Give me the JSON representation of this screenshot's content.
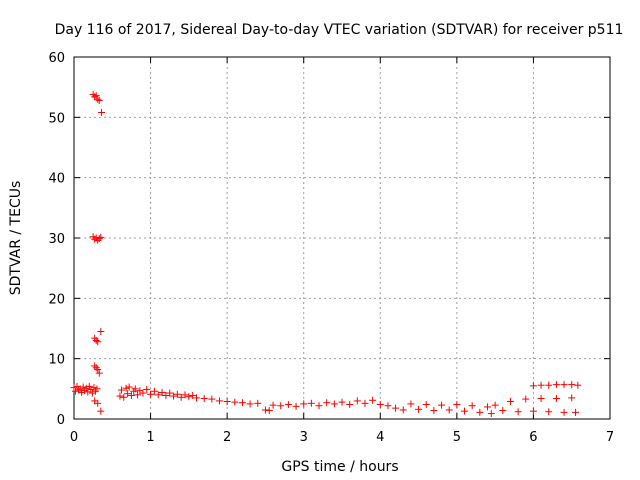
{
  "chart_data": {
    "type": "scatter",
    "title": "Day 116 of 2017, Sidereal Day-to-day VTEC variation (SDTVAR) for receiver p511",
    "xlabel": "GPS time / hours",
    "ylabel": "SDTVAR / TECUs",
    "xlim": [
      0,
      7
    ],
    "ylim": [
      0,
      60
    ],
    "xticks": [
      0,
      1,
      2,
      3,
      4,
      5,
      6,
      7
    ],
    "yticks": [
      0,
      10,
      20,
      30,
      40,
      50,
      60
    ],
    "grid": true,
    "marker": "+",
    "color": "#ff0000",
    "series": [
      {
        "name": "SDTVAR",
        "points": [
          [
            0.0,
            5.2
          ],
          [
            0.02,
            4.6
          ],
          [
            0.04,
            5.4
          ],
          [
            0.06,
            4.8
          ],
          [
            0.08,
            5.0
          ],
          [
            0.1,
            4.4
          ],
          [
            0.12,
            5.3
          ],
          [
            0.14,
            4.7
          ],
          [
            0.16,
            5.1
          ],
          [
            0.18,
            4.5
          ],
          [
            0.2,
            5.4
          ],
          [
            0.22,
            4.9
          ],
          [
            0.24,
            4.3
          ],
          [
            0.26,
            5.2
          ],
          [
            0.28,
            4.6
          ],
          [
            0.3,
            5.0
          ],
          [
            0.25,
            53.8
          ],
          [
            0.27,
            53.4
          ],
          [
            0.29,
            53.6
          ],
          [
            0.31,
            53.0
          ],
          [
            0.33,
            52.8
          ],
          [
            0.36,
            50.8
          ],
          [
            0.25,
            30.2
          ],
          [
            0.27,
            29.8
          ],
          [
            0.29,
            30.0
          ],
          [
            0.31,
            29.6
          ],
          [
            0.33,
            29.9
          ],
          [
            0.35,
            30.1
          ],
          [
            0.27,
            13.4
          ],
          [
            0.29,
            13.0
          ],
          [
            0.31,
            12.8
          ],
          [
            0.35,
            14.5
          ],
          [
            0.27,
            8.8
          ],
          [
            0.29,
            8.5
          ],
          [
            0.31,
            8.2
          ],
          [
            0.33,
            7.6
          ],
          [
            0.27,
            3.0
          ],
          [
            0.31,
            2.6
          ],
          [
            0.35,
            1.3
          ],
          [
            0.6,
            3.8
          ],
          [
            0.62,
            4.8
          ],
          [
            0.65,
            3.6
          ],
          [
            0.68,
            5.1
          ],
          [
            0.7,
            4.2
          ],
          [
            0.72,
            5.3
          ],
          [
            0.75,
            3.9
          ],
          [
            0.78,
            4.6
          ],
          [
            0.8,
            5.0
          ],
          [
            0.83,
            4.0
          ],
          [
            0.86,
            4.7
          ],
          [
            0.9,
            4.3
          ],
          [
            0.95,
            4.9
          ],
          [
            1.0,
            4.1
          ],
          [
            1.05,
            4.6
          ],
          [
            1.1,
            4.0
          ],
          [
            1.15,
            4.4
          ],
          [
            1.2,
            3.9
          ],
          [
            1.25,
            4.3
          ],
          [
            1.3,
            3.8
          ],
          [
            1.35,
            4.1
          ],
          [
            1.4,
            3.6
          ],
          [
            1.45,
            4.0
          ],
          [
            1.5,
            3.7
          ],
          [
            1.55,
            3.9
          ],
          [
            1.6,
            3.5
          ],
          [
            1.7,
            3.4
          ],
          [
            1.8,
            3.3
          ],
          [
            1.9,
            3.0
          ],
          [
            2.0,
            2.9
          ],
          [
            2.1,
            2.8
          ],
          [
            2.2,
            2.7
          ],
          [
            2.3,
            2.5
          ],
          [
            2.4,
            2.6
          ],
          [
            2.5,
            1.5
          ],
          [
            2.55,
            1.4
          ],
          [
            2.6,
            2.3
          ],
          [
            2.7,
            2.2
          ],
          [
            2.8,
            2.4
          ],
          [
            2.9,
            2.1
          ],
          [
            3.0,
            2.5
          ],
          [
            3.1,
            2.6
          ],
          [
            3.2,
            2.2
          ],
          [
            3.3,
            2.7
          ],
          [
            3.4,
            2.5
          ],
          [
            3.5,
            2.8
          ],
          [
            3.6,
            2.4
          ],
          [
            3.7,
            3.0
          ],
          [
            3.8,
            2.6
          ],
          [
            3.9,
            3.1
          ],
          [
            4.0,
            2.4
          ],
          [
            4.1,
            2.2
          ],
          [
            4.2,
            1.8
          ],
          [
            4.3,
            1.5
          ],
          [
            4.4,
            2.5
          ],
          [
            4.5,
            1.6
          ],
          [
            4.6,
            2.4
          ],
          [
            4.7,
            1.4
          ],
          [
            4.8,
            2.3
          ],
          [
            4.9,
            1.5
          ],
          [
            5.0,
            2.4
          ],
          [
            5.1,
            1.3
          ],
          [
            5.2,
            2.2
          ],
          [
            5.3,
            1.1
          ],
          [
            5.4,
            2.0
          ],
          [
            5.45,
            0.9
          ],
          [
            5.5,
            2.3
          ],
          [
            5.6,
            1.4
          ],
          [
            5.7,
            2.9
          ],
          [
            5.8,
            1.2
          ],
          [
            5.9,
            3.3
          ],
          [
            6.0,
            1.3
          ],
          [
            6.0,
            5.5
          ],
          [
            6.1,
            3.4
          ],
          [
            6.1,
            5.6
          ],
          [
            6.2,
            1.2
          ],
          [
            6.2,
            5.6
          ],
          [
            6.3,
            3.4
          ],
          [
            6.3,
            5.7
          ],
          [
            6.4,
            1.1
          ],
          [
            6.4,
            5.7
          ],
          [
            6.5,
            3.5
          ],
          [
            6.5,
            5.7
          ],
          [
            6.55,
            1.1
          ],
          [
            6.58,
            5.6
          ]
        ]
      }
    ]
  }
}
